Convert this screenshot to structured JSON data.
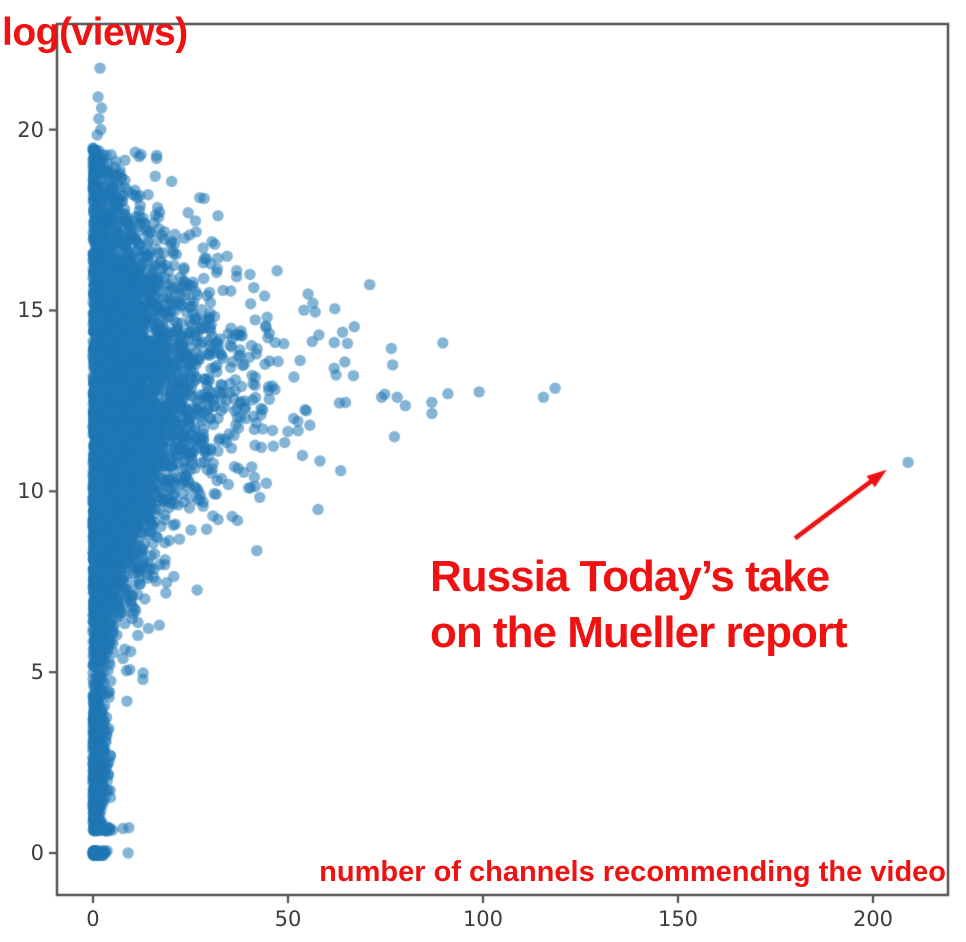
{
  "figure": {
    "background": "#ffffff"
  },
  "chart_data": {
    "type": "scatter",
    "title": "",
    "xlabel": "number of channels recommending the video",
    "ylabel": "log(views)",
    "xlim": [
      -9.23,
      219.23
    ],
    "ylim": [
      -1.16,
      22.92
    ],
    "x_ticks": [
      0,
      50,
      100,
      150,
      200
    ],
    "y_ticks": [
      0,
      5,
      10,
      15,
      20
    ],
    "grid": false,
    "legend": null,
    "frame": "full-box",
    "marker": {
      "color": "#1f77b4",
      "alpha": 0.55,
      "radius_px": 5.7
    },
    "axis_style": {
      "spine_color": "#4f4f4f",
      "spine_width": 2.4,
      "tick_length": 8,
      "tick_width": 2.2,
      "tick_label_color": "#3d3d3d",
      "label_color": "#ee1212"
    },
    "annotation": {
      "lines": [
        "Russia Today’s take",
        "on the Mueller report"
      ],
      "color": "#ee1212",
      "arrow": {
        "from": [
          180.0,
          8.7
        ],
        "to": [
          203.5,
          10.6
        ],
        "width": 4.5,
        "head_length": 20,
        "head_width": 14
      }
    },
    "highlight_point": {
      "x": 209,
      "y": 10.8,
      "note": "Russia Today’s take on the Mueller report"
    },
    "notable_points": [
      [
        16.3,
        19.2
      ],
      [
        21.0,
        17.1
      ],
      [
        23.5,
        17.0
      ],
      [
        30.5,
        16.9
      ],
      [
        34.4,
        16.5
      ],
      [
        47.2,
        16.1
      ],
      [
        44.0,
        15.4
      ],
      [
        56.4,
        15.2
      ],
      [
        62.0,
        15.05
      ],
      [
        67.0,
        14.55
      ],
      [
        64.0,
        14.4
      ],
      [
        76.5,
        13.95
      ],
      [
        89.7,
        14.1
      ],
      [
        91.0,
        12.7
      ],
      [
        99.0,
        12.75
      ],
      [
        86.9,
        12.15
      ],
      [
        74.0,
        12.6
      ],
      [
        78.0,
        12.6
      ],
      [
        115.5,
        12.6
      ],
      [
        118.5,
        12.85
      ],
      [
        58.2,
        10.84
      ],
      [
        57.7,
        9.5
      ],
      [
        42.0,
        8.36
      ],
      [
        17.0,
        6.3
      ],
      [
        12.8,
        4.8
      ],
      [
        8.7,
        4.2
      ],
      [
        4.4,
        2.7
      ],
      [
        9.2,
        0.7
      ],
      [
        7.7,
        0.68
      ],
      [
        9.0,
        0.0
      ]
    ],
    "upper_tail_points": [
      [
        1.8,
        21.7
      ],
      [
        1.3,
        20.9
      ],
      [
        2.2,
        20.6
      ],
      [
        1.5,
        20.3
      ],
      [
        2.0,
        20.0
      ],
      [
        1.1,
        19.85
      ],
      [
        6.4,
        18.1
      ],
      [
        10.2,
        18.2
      ],
      [
        12.1,
        17.9
      ],
      [
        8.2,
        18.6
      ]
    ],
    "cloud_model": {
      "seed": 1337,
      "layers": [
        {
          "name": "main-cloud",
          "n": 5200,
          "y": {
            "dist": "gauss",
            "mean": 11.9,
            "sd": 3.2,
            "min": 4.3,
            "max": 19.4
          },
          "x": {
            "base": 1.6,
            "peak": 10.5,
            "peak_y": 13.4,
            "sigma": 4.6,
            "max": 100
          }
        },
        {
          "name": "low-column",
          "n": 380,
          "y": {
            "dist": "uniform",
            "min": 0.78,
            "max": 4.4
          },
          "x": {
            "base": 0.9,
            "peak": 0.6,
            "peak_y": 4.2,
            "sigma": 2.5,
            "max": 4.6
          }
        },
        {
          "name": "top-column",
          "n": 55,
          "y": {
            "dist": "uniform",
            "min": 18.1,
            "max": 19.55
          },
          "x": {
            "base": 1.0,
            "peak": 0,
            "peak_y": 0,
            "sigma": 1,
            "max": 3.2
          }
        },
        {
          "name": "zero-row",
          "n": 85,
          "y": {
            "dist": "uniform",
            "min": -0.07,
            "max": 0.07
          },
          "x": {
            "base": 1.15,
            "peak": 0,
            "peak_y": 0,
            "sigma": 1,
            "max": 3.8
          }
        },
        {
          "name": "row-0-7",
          "n": 40,
          "y": {
            "dist": "uniform",
            "min": 0.6,
            "max": 0.78
          },
          "x": {
            "base": 2.0,
            "peak": 0,
            "peak_y": 0,
            "sigma": 1,
            "max": 7.8
          }
        }
      ]
    }
  }
}
